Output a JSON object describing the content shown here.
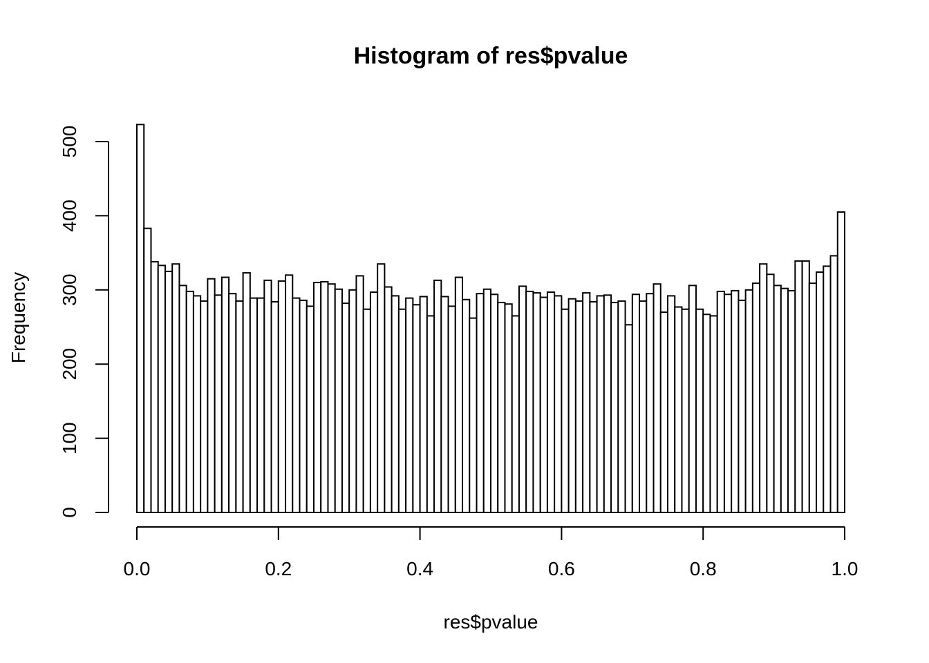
{
  "chart_data": {
    "type": "bar",
    "title": "Histogram of res$pvalue",
    "xlabel": "res$pvalue",
    "ylabel": "Frequency",
    "xlim": [
      0,
      1
    ],
    "ylim": [
      0,
      520
    ],
    "bin_width": 0.01,
    "x_ticks": [
      0,
      0.2,
      0.4,
      0.6,
      0.8,
      1.0
    ],
    "x_tick_labels": [
      "0.0",
      "0.2",
      "0.4",
      "0.6",
      "0.8",
      "1.0"
    ],
    "y_ticks": [
      0,
      100,
      200,
      300,
      400,
      500
    ],
    "y_tick_labels": [
      "0",
      "100",
      "200",
      "300",
      "400",
      "500"
    ],
    "grid": false,
    "legend": "none",
    "bar_fill": "#ffffff",
    "bar_stroke": "#000000",
    "values": [
      523,
      383,
      338,
      333,
      325,
      335,
      306,
      298,
      292,
      285,
      315,
      293,
      317,
      295,
      285,
      323,
      289,
      289,
      313,
      284,
      312,
      320,
      289,
      286,
      278,
      310,
      311,
      308,
      301,
      282,
      300,
      319,
      274,
      297,
      335,
      304,
      292,
      274,
      289,
      280,
      291,
      265,
      313,
      291,
      278,
      317,
      287,
      262,
      295,
      301,
      294,
      283,
      281,
      265,
      305,
      298,
      296,
      290,
      297,
      292,
      274,
      288,
      285,
      296,
      284,
      292,
      293,
      283,
      285,
      253,
      294,
      285,
      295,
      308,
      270,
      292,
      277,
      274,
      306,
      274,
      267,
      265,
      298,
      294,
      299,
      286,
      300,
      309,
      335,
      321,
      306,
      302,
      299,
      339,
      339,
      309,
      324,
      332,
      346,
      405
    ]
  }
}
